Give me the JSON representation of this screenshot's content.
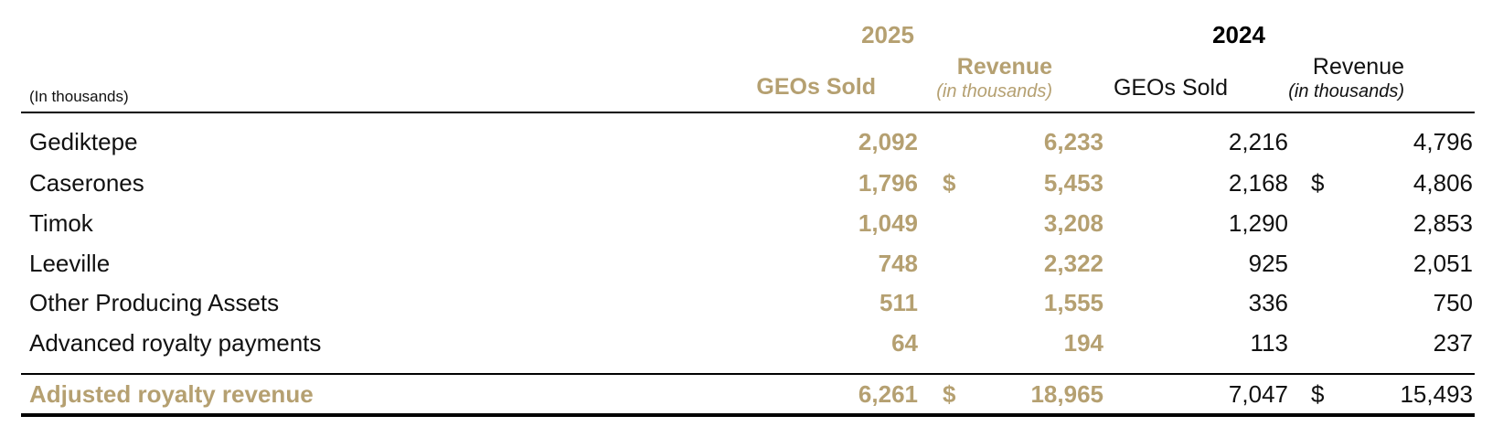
{
  "header": {
    "units_note": "(In thousands)",
    "year_2025": "2025",
    "year_2024": "2024",
    "col_geos_2025": "GEOs Sold",
    "col_revenue_2025": "Revenue",
    "col_revenue_2025_sub": "(in thousands)",
    "col_geos_2024": "GEOs Sold",
    "col_revenue_2024": "Revenue",
    "col_revenue_2024_sub": "(in thousands)"
  },
  "rows": [
    {
      "label": "Gediktepe",
      "geos_2025": "2,092",
      "dollar_2025": "",
      "revenue_2025": "6,233",
      "geos_2024": "2,216",
      "dollar_2024": "",
      "revenue_2024": "4,796"
    },
    {
      "label": "Caserones",
      "geos_2025": "1,796",
      "dollar_2025": "$",
      "revenue_2025": "5,453",
      "geos_2024": "2,168",
      "dollar_2024": "$",
      "revenue_2024": "4,806"
    },
    {
      "label": "Timok",
      "geos_2025": "1,049",
      "dollar_2025": "",
      "revenue_2025": "3,208",
      "geos_2024": "1,290",
      "dollar_2024": "",
      "revenue_2024": "2,853"
    },
    {
      "label": "Leeville",
      "geos_2025": "748",
      "dollar_2025": "",
      "revenue_2025": "2,322",
      "geos_2024": "925",
      "dollar_2024": "",
      "revenue_2024": "2,051"
    },
    {
      "label": "Other Producing Assets",
      "geos_2025": "511",
      "dollar_2025": "",
      "revenue_2025": "1,555",
      "geos_2024": "336",
      "dollar_2024": "",
      "revenue_2024": "750"
    },
    {
      "label": "Advanced royalty payments",
      "geos_2025": "64",
      "dollar_2025": "",
      "revenue_2025": "194",
      "geos_2024": "113",
      "dollar_2024": "",
      "revenue_2024": "237"
    }
  ],
  "total": {
    "label": "Adjusted royalty revenue",
    "geos_2025": "6,261",
    "dollar_2025": "$",
    "revenue_2025": "18,965",
    "geos_2024": "7,047",
    "dollar_2024": "$",
    "revenue_2024": "15,493"
  },
  "colors": {
    "accent_gold": "#b5a071",
    "text": "#111111",
    "rule": "#000000"
  }
}
